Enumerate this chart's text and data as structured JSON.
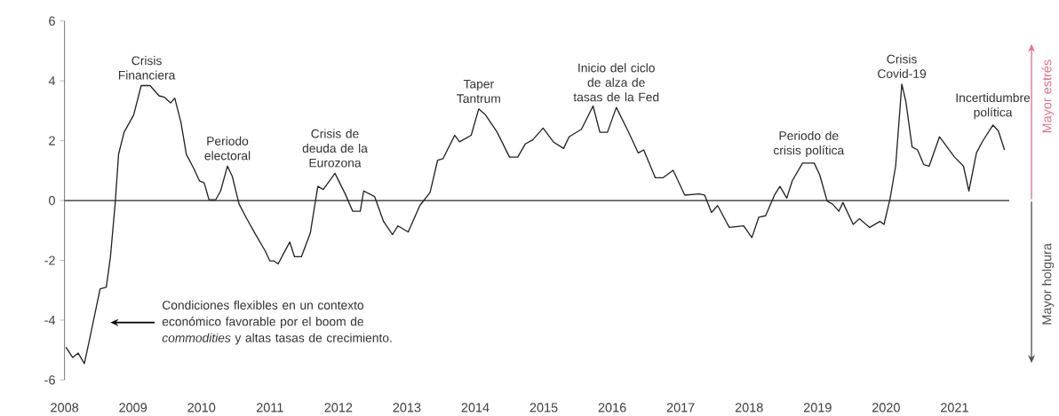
{
  "chart_data": {
    "type": "line",
    "xlim": [
      2008,
      2021.8
    ],
    "ylim": [
      -6,
      6
    ],
    "xticks": [
      2008,
      2009,
      2010,
      2011,
      2012,
      2013,
      2014,
      2015,
      2016,
      2017,
      2018,
      2019,
      2020,
      2021
    ],
    "yticks": [
      -6,
      -4,
      -2,
      0,
      2,
      4,
      6
    ],
    "grid": false,
    "marker": "none",
    "line_style": "solid",
    "ref_lines": [
      {
        "axis": "y",
        "value": 0,
        "color": "#222222"
      }
    ],
    "series": [
      {
        "color": "#222222",
        "x": [
          2008.02,
          2008.12,
          2008.2,
          2008.29,
          2008.37,
          2008.52,
          2008.61,
          2008.67,
          2008.74,
          2008.79,
          2008.87,
          2009.01,
          2009.12,
          2009.25,
          2009.38,
          2009.46,
          2009.55,
          2009.61,
          2009.7,
          2009.78,
          2009.89,
          2009.97,
          2010.04,
          2010.11,
          2010.21,
          2010.28,
          2010.38,
          2010.45,
          2010.55,
          2010.66,
          2010.78,
          2010.93,
          2011.0,
          2011.06,
          2011.12,
          2011.21,
          2011.29,
          2011.36,
          2011.46,
          2011.59,
          2011.7,
          2011.78,
          2011.95,
          2012.1,
          2012.21,
          2012.32,
          2012.37,
          2012.53,
          2012.66,
          2012.79,
          2012.87,
          2013.02,
          2013.19,
          2013.34,
          2013.45,
          2013.53,
          2013.7,
          2013.77,
          2013.94,
          2014.05,
          2014.15,
          2014.32,
          2014.5,
          2014.62,
          2014.73,
          2014.84,
          2014.99,
          2015.14,
          2015.29,
          2015.37,
          2015.55,
          2015.72,
          2015.82,
          2015.93,
          2016.06,
          2016.23,
          2016.38,
          2016.46,
          2016.63,
          2016.74,
          2016.89,
          2017.06,
          2017.27,
          2017.35,
          2017.45,
          2017.54,
          2017.71,
          2017.92,
          2018.04,
          2018.14,
          2018.24,
          2018.37,
          2018.45,
          2018.55,
          2018.63,
          2018.78,
          2018.95,
          2019.03,
          2019.14,
          2019.22,
          2019.31,
          2019.37,
          2019.52,
          2019.61,
          2019.76,
          2019.91,
          2019.97,
          2020.06,
          2020.14,
          2020.23,
          2020.29,
          2020.38,
          2020.46,
          2020.55,
          2020.63,
          2020.78,
          2021.0,
          2021.13,
          2021.21,
          2021.32,
          2021.41,
          2021.56,
          2021.64,
          2021.73
        ],
        "values": [
          -4.9,
          -5.25,
          -5.1,
          -5.45,
          -4.6,
          -2.95,
          -2.9,
          -1.9,
          -0.1,
          1.55,
          2.28,
          2.86,
          3.84,
          3.84,
          3.5,
          3.45,
          3.26,
          3.42,
          2.62,
          1.54,
          1.06,
          0.66,
          0.59,
          0.03,
          0.03,
          0.32,
          1.15,
          0.81,
          -0.12,
          -0.6,
          -1.09,
          -1.68,
          -2.02,
          -2.02,
          -2.12,
          -1.73,
          -1.39,
          -1.88,
          -1.88,
          -1.09,
          0.47,
          0.37,
          0.91,
          0.22,
          -0.36,
          -0.36,
          0.32,
          0.13,
          -0.7,
          -1.14,
          -0.85,
          -1.05,
          -0.17,
          0.27,
          1.35,
          1.4,
          2.18,
          1.96,
          2.18,
          3.06,
          2.86,
          2.28,
          1.45,
          1.45,
          1.89,
          2.03,
          2.42,
          1.96,
          1.74,
          2.13,
          2.38,
          3.16,
          2.28,
          2.28,
          3.11,
          2.33,
          1.59,
          1.69,
          0.76,
          0.76,
          1.01,
          0.18,
          0.22,
          0.18,
          -0.4,
          -0.17,
          -0.9,
          -0.85,
          -1.24,
          -0.56,
          -0.51,
          0.18,
          0.47,
          0.08,
          0.66,
          1.25,
          1.25,
          0.86,
          -0.02,
          -0.12,
          -0.36,
          -0.07,
          -0.8,
          -0.61,
          -0.9,
          -0.7,
          -0.8,
          0.08,
          1.15,
          3.89,
          3.3,
          1.79,
          1.69,
          1.2,
          1.15,
          2.13,
          1.45,
          1.15,
          0.32,
          1.59,
          1.98,
          2.52,
          2.33,
          1.69
        ]
      }
    ],
    "annotations": [
      {
        "text": "Crisis Financiera",
        "x": 2009.2,
        "y": 3.84
      },
      {
        "text": "Periodo electoral",
        "x": 2010.38,
        "y": 1.15
      },
      {
        "text": "Crisis de deuda de la Eurozona",
        "x": 2011.95,
        "y": 0.91
      },
      {
        "text": "Taper Tantrum",
        "x": 2014.05,
        "y": 3.06
      },
      {
        "text": "Inicio del ciclo de alza de tasas de la Fed",
        "x": 2016.06,
        "y": 3.11
      },
      {
        "text": "Periodo de crisis política",
        "x": 2018.87,
        "y": 1.25
      },
      {
        "text": "Crisis Covid-19",
        "x": 2020.23,
        "y": 3.89
      },
      {
        "text": "Incertidumbre política",
        "x": 2021.56,
        "y": 2.52
      },
      "Condiciones  flexibles en un contexto económico favorable por el boom de *commodities* y altas tasas de crecimiento.",
      "Mayor estrés",
      "Mayor holgura"
    ]
  }
}
